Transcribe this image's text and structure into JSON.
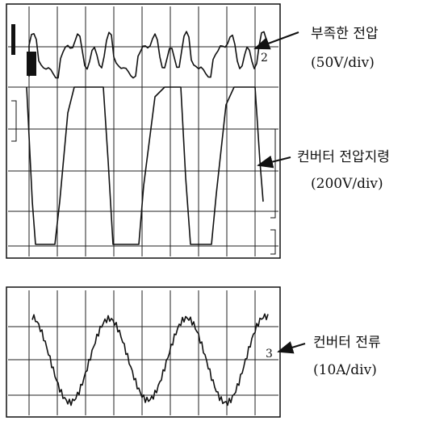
{
  "labels": [
    {
      "title": "부족한 전압",
      "scale": "(50V/div)"
    },
    {
      "title": "컨버터 전압지령",
      "scale": "(200V/div)"
    },
    {
      "title": "컨버터 전류",
      "scale": "(10A/div)"
    }
  ],
  "channel_markers": [
    "2",
    "3"
  ]
}
